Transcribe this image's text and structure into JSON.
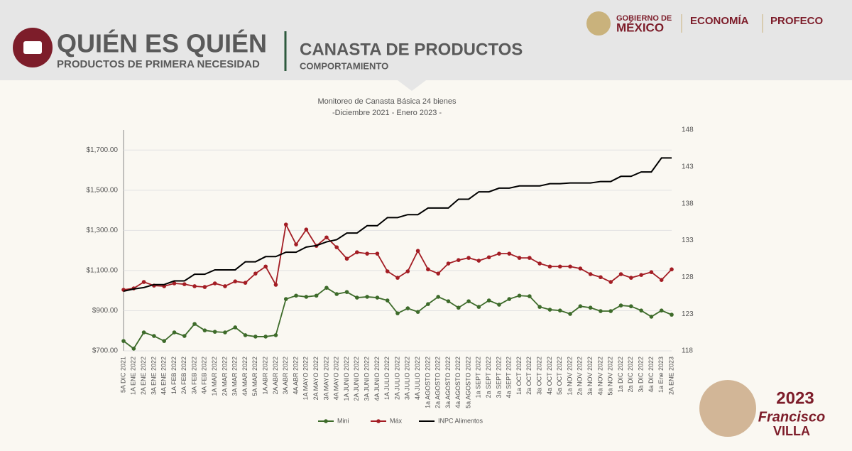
{
  "header": {
    "title": "QUIÉN ES QUIÉN",
    "subtitle": "PRODUCTOS DE PRIMERA NECESIDAD",
    "section": "CANASTA DE PRODUCTOS",
    "section_subtitle": "COMPORTAMIENTO",
    "logos": [
      "GOBIERNO DE",
      "MÉXICO",
      "ECONOMÍA",
      "PROFECO"
    ],
    "badge": [
      "2023",
      "Francisco",
      "VILLA"
    ]
  },
  "chart_data": {
    "type": "line",
    "title": "Monitoreo de Canasta Básica 24 bienes",
    "subtitle": "-Diciembre 2021 - Enero 2023 -",
    "categories": [
      "5A DIC 2021",
      "1A ENE 2022",
      "2A ENE 2022",
      "3A ENE 2022",
      "4A ENE 2022",
      "1A FEB 2022",
      "2A FEB 2022",
      "3A FEB 2022",
      "4A FEB 2022",
      "1A MAR 2022",
      "2A MAR 2022",
      "3A MAR 2022",
      "4A MAR 2022",
      "5A MAR 2022",
      "1A ABR 2022",
      "2A ABR 2022",
      "3A ABR 2022",
      "4A ABR 2022",
      "1A MAYO 2022",
      "2A MAYO 2022",
      "3A MAYO 2022",
      "4A MAYO 2022",
      "1A JUNIO 2022",
      "2A JUNIO 2022",
      "3A JUNIO 2022",
      "4A JUNIO 2022",
      "1A JULIO 2022",
      "2A JULIO 2022",
      "3A JULIO 2022",
      "4A JULIO 2022",
      "1a AGOSTO 2022",
      "2a AGOSTO 2022",
      "3a AGOSTO 2022",
      "4a AGOSTO 2022",
      "5a AGOSTO 2022",
      "1a SEPT 2022",
      "2a SEPT 2022",
      "3a SEPT 2022",
      "4a SEPT 2022",
      "1a OCT 2022",
      "2a OCT 2022",
      "3a OCT 2022",
      "4a OCT 2022",
      "5a OCT 2022",
      "1a NOV 2022",
      "2a NOV 2022",
      "3a NOV 2022",
      "4a NOV 2022",
      "5a NOV 2022",
      "1a DIC 2022",
      "2a DIC 2022",
      "3a DIC 2022",
      "4a DIC 2022",
      "1a Ene 2023",
      "2A ENE 2023"
    ],
    "series": [
      {
        "name": "Mini",
        "color": "#3d6b2a",
        "markers": true,
        "values": [
          749,
          711,
          792,
          774,
          749,
          792,
          774,
          834,
          802,
          795,
          792,
          817,
          778,
          771,
          771,
          778,
          958,
          975,
          969,
          975,
          1014,
          983,
          993,
          965,
          969,
          965,
          951,
          887,
          912,
          894,
          933,
          969,
          947,
          915,
          947,
          919,
          951,
          930,
          958,
          975,
          972,
          919,
          905,
          901,
          884,
          922,
          915,
          898,
          898,
          926,
          922,
          901,
          870,
          901,
          880
        ]
      },
      {
        "name": "Máx",
        "color": "#a31d24",
        "markers": true,
        "values": [
          1004,
          1011,
          1043,
          1025,
          1022,
          1036,
          1032,
          1022,
          1018,
          1036,
          1022,
          1046,
          1039,
          1085,
          1120,
          1029,
          1329,
          1230,
          1304,
          1223,
          1265,
          1216,
          1159,
          1191,
          1184,
          1184,
          1096,
          1064,
          1096,
          1198,
          1106,
          1085,
          1135,
          1152,
          1163,
          1149,
          1166,
          1184,
          1184,
          1163,
          1163,
          1135,
          1120,
          1120,
          1120,
          1110,
          1082,
          1067,
          1043,
          1082,
          1064,
          1078,
          1092,
          1053,
          1106
        ]
      },
      {
        "name": "INPC Alimentos",
        "color": "#000000",
        "markers": false,
        "axis": "y2",
        "values": [
          126.1,
          126.4,
          126.6,
          127.0,
          127.0,
          127.5,
          127.5,
          128.4,
          128.4,
          129.0,
          129.0,
          129.0,
          130.1,
          130.1,
          130.8,
          130.8,
          131.4,
          131.4,
          132.1,
          132.3,
          132.8,
          133.1,
          134.0,
          134.0,
          135.0,
          135.0,
          136.1,
          136.1,
          136.5,
          136.5,
          137.4,
          137.4,
          137.4,
          138.6,
          138.6,
          139.6,
          139.6,
          140.1,
          140.1,
          140.4,
          140.4,
          140.4,
          140.7,
          140.7,
          140.8,
          140.8,
          140.8,
          141.0,
          141.0,
          141.7,
          141.7,
          142.3,
          142.3,
          144.2,
          144.2
        ]
      }
    ],
    "ylim": [
      700,
      1800
    ],
    "yticks": [
      {
        "value": 700,
        "label": "$700.00"
      },
      {
        "value": 900,
        "label": "$900.00"
      },
      {
        "value": 1100,
        "label": "$1,100.00"
      },
      {
        "value": 1300,
        "label": "$1,300.00"
      },
      {
        "value": 1500,
        "label": "$1,500.00"
      },
      {
        "value": 1700,
        "label": "$1,700.00"
      }
    ],
    "y2lim": [
      118,
      148
    ],
    "y2ticks": [
      118,
      123,
      128,
      133,
      138,
      143,
      148
    ],
    "grid": true,
    "legend": "bottom"
  }
}
